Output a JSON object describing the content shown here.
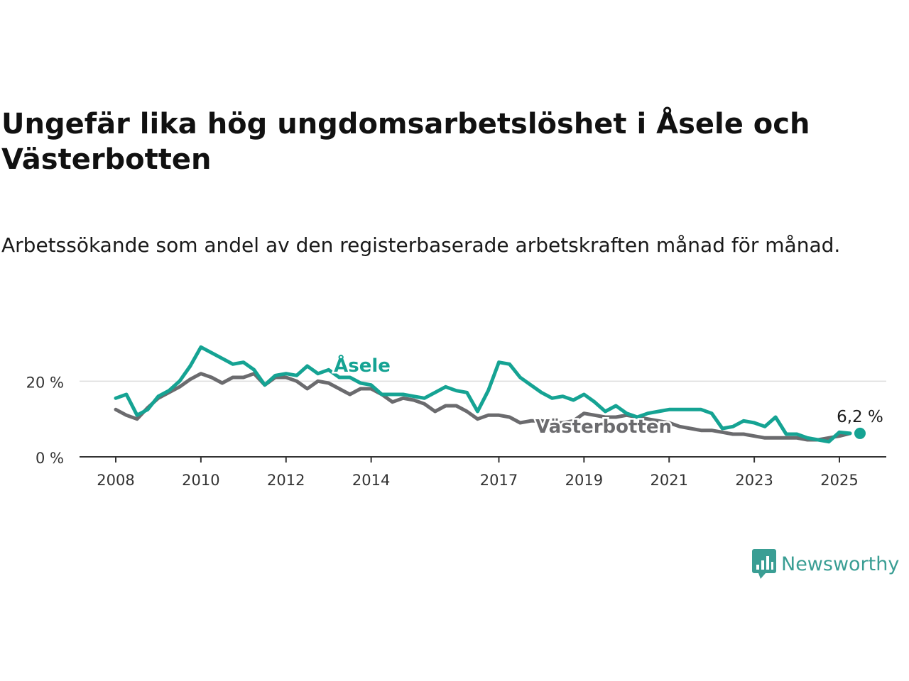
{
  "title": "Ungefär lika hög ungdomsarbetslöshet i Åsele och Västerbotten",
  "subtitle": "Arbetssökande som andel av den registerbaserade arbetskraften månad för månad.",
  "brand": {
    "name": "Newsworthy",
    "icon": "newsworthy-logo-icon",
    "color": "#3a9e94"
  },
  "chart_data": {
    "type": "line",
    "title": "Ungefär lika hög ungdomsarbetslöshet i Åsele och Västerbotten",
    "subtitle": "Arbetssökande som andel av den registerbaserade arbetskraften månad för månad.",
    "xlabel": "",
    "ylabel": "",
    "xlim": [
      2008,
      2025.6
    ],
    "ylim": [
      0,
      30
    ],
    "x_ticks": [
      2008,
      2010,
      2012,
      2014,
      2017,
      2019,
      2021,
      2023,
      2025
    ],
    "y_ticks": [
      {
        "value": 0,
        "label": "0 %"
      },
      {
        "value": 20,
        "label": "20 %"
      }
    ],
    "grid": "horizontal",
    "last_value_label": "6,2 %",
    "series": [
      {
        "name": "Åsele",
        "color": "#15a393",
        "x": [
          2008.0,
          2008.25,
          2008.5,
          2008.75,
          2009.0,
          2009.25,
          2009.5,
          2009.75,
          2010.0,
          2010.25,
          2010.5,
          2010.75,
          2011.0,
          2011.25,
          2011.5,
          2011.75,
          2012.0,
          2012.25,
          2012.5,
          2012.75,
          2013.0,
          2013.25,
          2013.5,
          2013.75,
          2014.0,
          2014.25,
          2014.5,
          2014.75,
          2015.0,
          2015.25,
          2015.5,
          2015.75,
          2016.0,
          2016.25,
          2016.5,
          2016.75,
          2017.0,
          2017.25,
          2017.5,
          2017.75,
          2018.0,
          2018.25,
          2018.5,
          2018.75,
          2019.0,
          2019.25,
          2019.5,
          2019.75,
          2020.0,
          2020.25,
          2020.5,
          2020.75,
          2021.0,
          2021.25,
          2021.5,
          2021.75,
          2022.0,
          2022.25,
          2022.5,
          2022.75,
          2023.0,
          2023.25,
          2023.5,
          2023.75,
          2024.0,
          2024.25,
          2024.5,
          2024.75,
          2025.0,
          2025.25
        ],
        "values": [
          15.5,
          16.5,
          11.0,
          12.5,
          16.0,
          17.5,
          20.0,
          24.0,
          29.0,
          27.5,
          26.0,
          24.5,
          25.0,
          23.0,
          19.0,
          21.5,
          22.0,
          21.5,
          24.0,
          22.0,
          23.0,
          21.0,
          21.0,
          19.5,
          19.0,
          16.5,
          16.5,
          16.5,
          16.0,
          15.5,
          17.0,
          18.5,
          17.5,
          17.0,
          12.0,
          17.5,
          25.0,
          24.5,
          21.0,
          19.0,
          17.0,
          15.5,
          16.0,
          15.0,
          16.5,
          14.5,
          12.0,
          13.5,
          11.5,
          10.5,
          11.5,
          12.0,
          12.5,
          12.5,
          12.5,
          12.5,
          11.5,
          7.5,
          8.0,
          9.5,
          9.0,
          8.0,
          10.5,
          6.0,
          6.0,
          5.0,
          4.5,
          4.0,
          6.5,
          6.2
        ]
      },
      {
        "name": "Västerbotten",
        "color": "#6b6b6e",
        "x": [
          2008.0,
          2008.25,
          2008.5,
          2008.75,
          2009.0,
          2009.25,
          2009.5,
          2009.75,
          2010.0,
          2010.25,
          2010.5,
          2010.75,
          2011.0,
          2011.25,
          2011.5,
          2011.75,
          2012.0,
          2012.25,
          2012.5,
          2012.75,
          2013.0,
          2013.25,
          2013.5,
          2013.75,
          2014.0,
          2014.25,
          2014.5,
          2014.75,
          2015.0,
          2015.25,
          2015.5,
          2015.75,
          2016.0,
          2016.25,
          2016.5,
          2016.75,
          2017.0,
          2017.25,
          2017.5,
          2017.75,
          2018.0,
          2018.25,
          2018.5,
          2018.75,
          2019.0,
          2019.25,
          2019.5,
          2019.75,
          2020.0,
          2020.25,
          2020.5,
          2020.75,
          2021.0,
          2021.25,
          2021.5,
          2021.75,
          2022.0,
          2022.25,
          2022.5,
          2022.75,
          2023.0,
          2023.25,
          2023.5,
          2023.75,
          2024.0,
          2024.25,
          2024.5,
          2024.75,
          2025.0,
          2025.25
        ],
        "values": [
          12.5,
          11.0,
          10.0,
          13.0,
          15.5,
          17.0,
          18.5,
          20.5,
          22.0,
          21.0,
          19.5,
          21.0,
          21.0,
          22.0,
          19.0,
          21.0,
          21.0,
          20.0,
          18.0,
          20.0,
          19.5,
          18.0,
          16.5,
          18.0,
          18.0,
          16.5,
          14.5,
          15.5,
          15.0,
          14.0,
          12.0,
          13.5,
          13.5,
          12.0,
          10.0,
          11.0,
          11.0,
          10.5,
          9.0,
          9.5,
          9.5,
          9.0,
          9.0,
          9.5,
          11.5,
          11.0,
          10.5,
          10.5,
          11.0,
          10.5,
          10.0,
          9.5,
          9.0,
          8.0,
          7.5,
          7.0,
          7.0,
          6.5,
          6.0,
          6.0,
          5.5,
          5.0,
          5.0,
          5.0,
          5.0,
          4.5,
          4.5,
          5.0,
          5.5,
          6.2
        ]
      }
    ]
  }
}
